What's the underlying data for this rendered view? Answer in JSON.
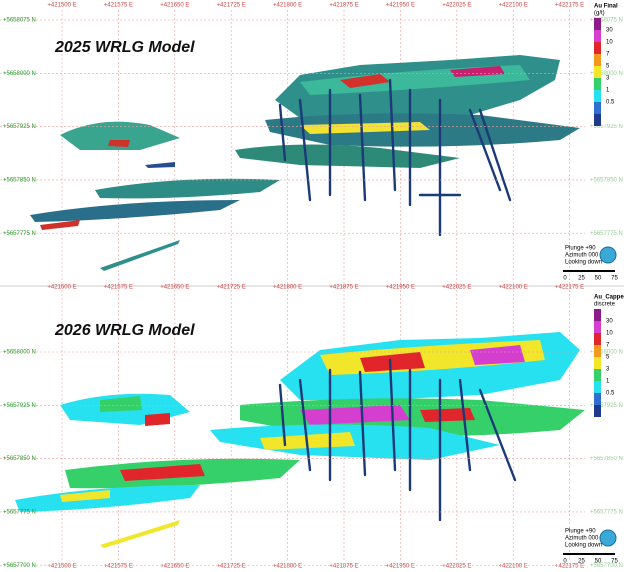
{
  "panels": [
    {
      "title": "2025 WRLG Model",
      "legend": {
        "title": "Au Final",
        "unit": "(g/t)",
        "values": [
          "30",
          "10",
          "7",
          "5",
          "3",
          "1",
          "0.5"
        ]
      },
      "northings": [
        "+5658075 N",
        "+5658000 N",
        "+5657925 N",
        "+5657850 N",
        "+5657775 N"
      ],
      "compass": [
        "Plunge +90",
        "Azimuth 000",
        "Looking down"
      ]
    },
    {
      "title": "2026 WRLG Model",
      "legend": {
        "title": "Au_Capped",
        "unit": "discrete",
        "values": [
          "30",
          "10",
          "7",
          "5",
          "3",
          "1",
          "0.5"
        ]
      },
      "northings": [
        "+5658000 N",
        "+5657925 N",
        "+5657850 N",
        "+5657775 N",
        "+5657700 N"
      ],
      "compass": [
        "Plunge +90",
        "Azimuth 000",
        "Looking down"
      ]
    }
  ],
  "eastings": [
    "+421500 E",
    "+421575 E",
    "+421650 E",
    "+421725 E",
    "+421800 E",
    "+421875 E",
    "+421950 E",
    "+422025 E",
    "+422100 E",
    "+422175 E"
  ],
  "scale": [
    "0",
    "25",
    "50",
    "75"
  ]
}
